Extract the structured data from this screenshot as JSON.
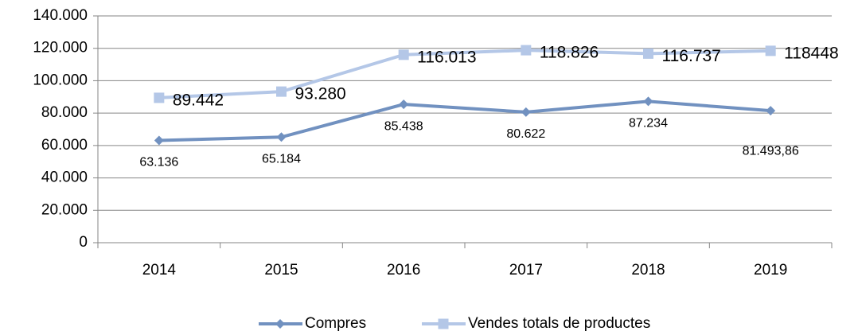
{
  "chart_data": {
    "type": "line",
    "categories": [
      "2014",
      "2015",
      "2016",
      "2017",
      "2018",
      "2019"
    ],
    "series": [
      {
        "name": "Compres",
        "color": "#7191c0",
        "marker": "diamond",
        "values": [
          63136,
          65184,
          85438,
          80622,
          87234,
          81493.86
        ],
        "value_labels": [
          "63.136",
          "65.184",
          "85.438",
          "80.622",
          "87.234",
          "81.493,86"
        ]
      },
      {
        "name": "Vendes totals de productes",
        "color": "#b4c7e7",
        "marker": "square",
        "values": [
          89442,
          93280,
          116013,
          118826,
          116737,
          118448
        ],
        "value_labels": [
          "89.442",
          "93.280",
          "116.013",
          "118.826",
          "116.737",
          "118448"
        ]
      }
    ],
    "ylim": [
      0,
      140000
    ],
    "yticks": [
      0,
      {
        "value": 20000,
        "label": "20.000"
      },
      {
        "value": 40000,
        "label": "40.000"
      },
      {
        "value": 60000,
        "label": "60.000"
      },
      {
        "value": 80000,
        "label": "80.000"
      },
      {
        "value": 100000,
        "label": "100.000"
      },
      {
        "value": 120000,
        "label": "120.000"
      },
      {
        "value": 140000,
        "label": "140.000"
      }
    ],
    "grid": true,
    "legend": "bottom"
  }
}
